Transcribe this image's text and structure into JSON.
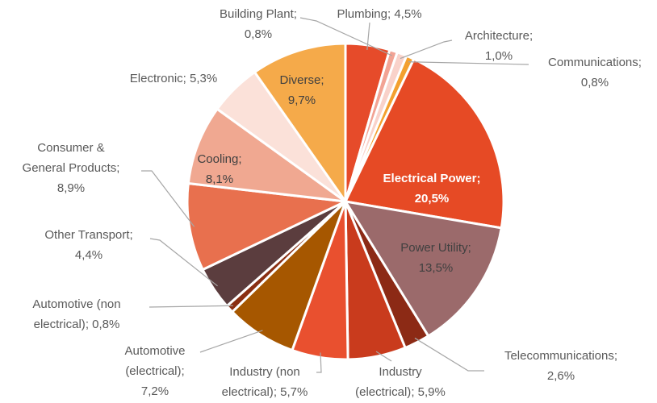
{
  "chart_data": {
    "type": "pie",
    "categories": [
      "Plumbing",
      "Building Plant",
      "Architecture",
      "Communications",
      "Electrical Power",
      "Power Utility",
      "Telecommunications",
      "Industry (electrical)",
      "Industry (non electrical)",
      "Automotive (electrical)",
      "Automotive (non electrical)",
      "Other Transport",
      "Consumer & General Products",
      "Cooling",
      "Electronic",
      "Diverse"
    ],
    "values": [
      4.5,
      0.8,
      1.0,
      0.8,
      20.5,
      13.5,
      2.6,
      5.9,
      5.7,
      7.2,
      0.8,
      4.4,
      8.9,
      8.1,
      5.3,
      9.7
    ],
    "value_labels": [
      "4,5%",
      "0,8%",
      "1,0%",
      "0,8%",
      "20,5%",
      "13,5%",
      "2,6%",
      "5,9%",
      "5,7%",
      "7,2%",
      "0,8%",
      "4,4%",
      "8,9%",
      "8,1%",
      "5,3%",
      "9,7%"
    ],
    "label_separator": ";",
    "colors": [
      "#e64b2a",
      "#f2a394",
      "#f9d2ca",
      "#f3a02f",
      "#e64a25",
      "#9b6a6b",
      "#8c2a15",
      "#c93b1d",
      "#e9502f",
      "#a65700",
      "#8a2f12",
      "#5b3d3e",
      "#e8704e",
      "#f0a891",
      "#fbe1d9",
      "#f5aa4a"
    ]
  }
}
